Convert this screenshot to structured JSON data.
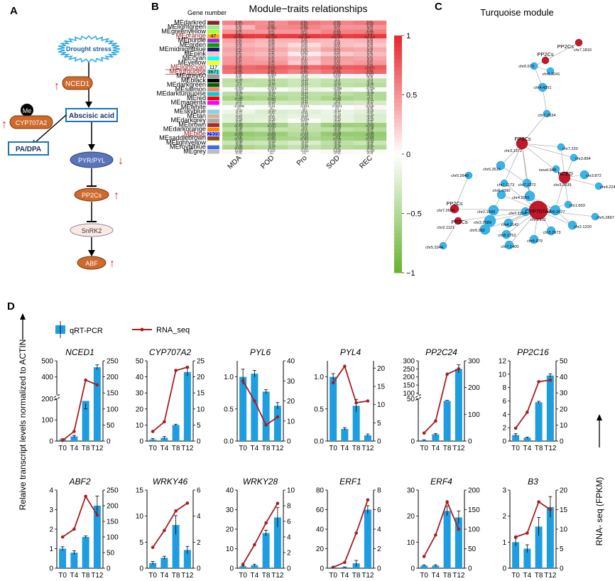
{
  "panels": {
    "A": {
      "label": "A",
      "nodes": {
        "drought": "Drought stress",
        "nced1": "NCED1",
        "aba": "Abscisic acid",
        "me": "Me",
        "cyp": "CYP707A2",
        "pa": "PA/DPA",
        "pyr": "PYR/PYL",
        "pp2c": "PP2Cs",
        "snrk": "SnRK2",
        "abf": "ABF"
      },
      "colors": {
        "orange": "#cd6a2c",
        "blue": "#1b75bb",
        "red": "#d9262b",
        "cyan": "#7fd1f0",
        "navy": "#5a74b8"
      }
    },
    "B": {
      "label": "B",
      "title": "Module−traits relationships",
      "gene_number_label": "Gene number",
      "modules": [
        "MEdarkred",
        "MElightgreen",
        "MEgreenyellow",
        "MEorange",
        "MEpurple",
        "MEgreen",
        "MEmidnightblue",
        "MEpink",
        "MEcyan",
        "MEyellow",
        "MElightcyan",
        "MEturquoise",
        "MEgrey60",
        "MEblack",
        "MEdarkgreen",
        "MEsalmon",
        "MEdarkturquoise",
        "MEred",
        "MEmagenta",
        "MEwhite",
        "MEskyblue",
        "MEtan",
        "MEdarkgrey",
        "MEbrown",
        "MEdarkorange",
        "MEblue",
        "MEsaddlebrown",
        "MElightyellow",
        "MEroyalblue",
        "MEgrey"
      ],
      "module_colors": [
        "#8b2323",
        "#90ee90",
        "#adff2f",
        "#ffa500",
        "#a020f0",
        "#00a000",
        "#191970",
        "#ffc0cb",
        "#00ffff",
        "#ffff00",
        "#e0ffff",
        "#40e0d0",
        "#999999",
        "#000000",
        "#006400",
        "#fa8072",
        "#00ced1",
        "#ff0000",
        "#ff00ff",
        "#ffffff",
        "#87ceeb",
        "#d2b48c",
        "#a9a9a9",
        "#a52a2a",
        "#ff8c00",
        "#0000ff",
        "#8b4513",
        "#ffffe0",
        "#4169e1",
        "#bebebe"
      ],
      "highlighted": {
        "MEorange": "47",
        "MElightcyan": "117",
        "MEturquoise": "3671",
        "MEblue": "2909"
      },
      "traits": [
        "MDA",
        "POD",
        "Pro",
        "SOD",
        "REC"
      ],
      "colorbar_ticks": [
        "1",
        "0.5",
        "0",
        "−0.5",
        "−1"
      ]
    },
    "C": {
      "label": "C",
      "title": "Turquoise module",
      "node_labels": [
        "PP2Cs",
        "chr7.1810",
        "PP2Cs",
        "chr6.673",
        "chr6.3041",
        "chr4.4251",
        "chr7.2634",
        "PP2Cs",
        "chr3.1372",
        "chr7.220",
        "chr3.894",
        "chr6.3515",
        "chr5.2840",
        "chr7.1173",
        "chr7.2272",
        "novel.948",
        "NCED",
        "chr3.3639",
        "chr3.872",
        "chr4.2242",
        "chr6.4390",
        "chr4.2991",
        "chr2.1609",
        "chr7.1104",
        "chr2.2589",
        "chr4.1142",
        "chr5.2077",
        "chr5.2897",
        "PP2Cs",
        "chr7.2604",
        "chr1.603",
        "CYP707A2",
        "chr3.932",
        "chr2.1220",
        "chr5.992",
        "chr5.1752",
        "chr2.2673",
        "PP2Cs",
        "chr2.1121",
        "chr7.1400",
        "chr5.979",
        "chr5.3344"
      ]
    },
    "D": {
      "label": "D"
    }
  },
  "legend": {
    "bar": "qRT-PCR",
    "line": "RNA_seq"
  },
  "y_left_label": "Relaive transcript levels normalized to ACTIN",
  "y_right_label": "RNA- seq (FPKM)",
  "colors": {
    "bar": "#1e9de0",
    "line": "#a51e22"
  },
  "chart_data": {
    "type": "heatmap",
    "title": "Module−traits relationships",
    "rows": [
      "MEdarkred",
      "MElightgreen",
      "MEgreenyellow",
      "MEorange",
      "MEpurple",
      "MEgreen",
      "MEmidnightblue",
      "MEpink",
      "MEcyan",
      "MEyellow",
      "MElightcyan",
      "MEturquoise",
      "MEgrey60",
      "MEblack",
      "MEdarkgreen",
      "MEsalmon",
      "MEdarkturquoise",
      "MEred",
      "MEmagenta",
      "MEwhite",
      "MEskyblue",
      "MEtan",
      "MEdarkgrey",
      "MEbrown",
      "MEdarkorange",
      "MEblue",
      "MEsaddlebrown",
      "MElightyellow",
      "MEroyalblue",
      "MEgrey"
    ],
    "columns": [
      "MDA",
      "POD",
      "Pro",
      "SOD",
      "REC"
    ],
    "values": [
      [
        0.56,
        0.51,
        0.61,
        0.56,
        0.61
      ],
      [
        0.33,
        0.54,
        0.55,
        0.48,
        0.49
      ],
      [
        0.49,
        0.47,
        0.47,
        0.56,
        0.58
      ],
      [
        0.91,
        0.89,
        0.9,
        0.88,
        0.9
      ],
      [
        0.41,
        0.33,
        0.33,
        0.3,
        0.33
      ],
      [
        0.34,
        0.29,
        0.16,
        0.29,
        0.26
      ],
      [
        0.42,
        0.39,
        0.28,
        0.42,
        0.39
      ],
      [
        0.37,
        0.32,
        0.097,
        0.24,
        0.31
      ],
      [
        0.46,
        0.41,
        0.3,
        0.44,
        0.41
      ],
      [
        0.47,
        0.46,
        0.23,
        0.42,
        0.47
      ],
      [
        0.69,
        0.73,
        0.69,
        0.74,
        0.75
      ],
      [
        0.65,
        0.66,
        0.56,
        0.65,
        0.68
      ],
      [
        0.05,
        -0.062,
        -0.11,
        0.042,
        0.057
      ],
      [
        -0.44,
        -0.41,
        -0.33,
        -0.4,
        -0.4
      ],
      [
        -0.4,
        -0.44,
        -0.34,
        -0.42,
        -0.46
      ],
      [
        -0.032,
        -0.044,
        -0.12,
        -0.086,
        -0.028
      ],
      [
        -0.45,
        -0.44,
        -0.42,
        -0.44,
        -0.49
      ],
      [
        -0.58,
        -0.53,
        -0.45,
        -0.55,
        -0.5
      ],
      [
        -0.3,
        -0.29,
        -0.31,
        -0.3,
        -0.27
      ],
      [
        -0.0095,
        -0.01,
        -0.014,
        0.0013,
        0.049
      ],
      [
        -0.12,
        -0.23,
        -0.2,
        -0.13,
        -0.18
      ],
      [
        -0.21,
        -0.2,
        -0.15,
        -0.15,
        -0.24
      ],
      [
        -0.18,
        -0.16,
        -0.044,
        -0.15,
        -0.23
      ],
      [
        -0.59,
        -0.59,
        -0.38,
        -0.63,
        -0.61
      ],
      [
        -0.42,
        -0.37,
        -0.4,
        -0.42,
        -0.48
      ],
      [
        -0.69,
        -0.65,
        -0.49,
        -0.68,
        -0.68
      ],
      [
        -0.6,
        -0.56,
        -0.54,
        -0.6,
        -0.64
      ],
      [
        -0.35,
        -0.33,
        -0.24,
        -0.41,
        -0.34
      ],
      [
        -0.55,
        -0.49,
        -0.39,
        -0.48,
        -0.51
      ],
      [
        0.039,
        0.013,
        -0.011,
        0.039,
        -0.035
      ]
    ],
    "pvalues": [
      "(0.07)",
      "(0.1)",
      "(0.04)",
      "(0.06)",
      "(0.04)",
      "(0.3)",
      "(0.09)",
      "(0.08)",
      "(0.1)",
      "(0.1)",
      "(0.1)",
      "(0.1)",
      "(0.1)",
      "(0.06)",
      "(0.05)",
      "(0.002)",
      "(2e−04)",
      "(2e−04)",
      "(2e−04)",
      "(2e−04)",
      "(0.2)",
      "(0.3)",
      "(0.3)",
      "(0.3)",
      "(0.3)",
      "(0.3)",
      "(0.4)",
      "(0.6)",
      "(0.4)",
      "(0.4)",
      "(0.2)",
      "(0.2)",
      "(0.4)",
      "(0.2)",
      "(0.2)",
      "(0.3)",
      "(0.3)",
      "(0.8)",
      "(0.5)",
      "(0.3)",
      "(0.1)",
      "(0.2)",
      "(0.4)",
      "(0.1)",
      "(0.2)",
      "(0.1)",
      "(0.1)",
      "(0.5)",
      "(0.2)",
      "(0.1)",
      "(0.02)",
      "(0.01)",
      "(0.02)",
      "(0.009)",
      "(0.007)",
      "(0.03)",
      "(0.02)",
      "(0.07)",
      "(0.03)",
      "(0.02)",
      "(0.9)",
      "(0.8)",
      "(0.8)",
      "(0.9)",
      "(0.9)",
      "(0.2)",
      "(0.2)",
      "(0.3)",
      "(0.2)",
      "(0.2)",
      "(0.2)",
      "(0.2)",
      "(0.3)",
      "(0.2)",
      "(0.1)",
      "(0.9)",
      "(0.9)",
      "(0.7)",
      "(0.8)",
      "(0.9)",
      "(0.1)",
      "(0.2)",
      "(0.2)",
      "(0.1)",
      "(0.1)",
      "(0.05)",
      "(0.08)",
      "(0.1)",
      "(0.06)",
      "(0.1)",
      "(0.3)",
      "(0.4)",
      "(0.3)",
      "(0.3)",
      "(0.4)",
      "(1)",
      "(1)",
      "(1)",
      "(1)",
      "(0.9)",
      "(0.7)",
      "(0.5)",
      "(0.5)",
      "(0.7)",
      "(0.6)",
      "(0.5)",
      "(0.5)",
      "(0.6)",
      "(0.6)",
      "(0.5)",
      "(0.6)",
      "(0.6)",
      "(0.9)",
      "(0.6)",
      "(0.5)",
      "(0.06)",
      "(0.04)",
      "(0.2)",
      "(0.03)",
      "(0.04)",
      "(0.2)",
      "(0.2)",
      "(0.2)",
      "(0.2)",
      "(0.1)",
      "(0.02)",
      "(0.03)",
      "(0.09)",
      "(0.02)",
      "(0.02)",
      "(0.05)",
      "(0.06)",
      "(0.06)",
      "(0.03)",
      "(0.02)",
      "(0.3)",
      "(0.3)",
      "(0.4)",
      "(0.2)",
      "(0.3)",
      "(0.06)",
      "(0.1)",
      "(0.2)",
      "(0.1)",
      "(0.1)",
      "(0.9)",
      "(1)",
      "(1)",
      "(0.9)",
      "(0.9)"
    ],
    "colorbar": {
      "min": -1,
      "max": 1,
      "low_color": "#66b32e",
      "mid_color": "#ffffff",
      "high_color": "#e8242a"
    },
    "subcharts": [
      {
        "gene": "NCED1",
        "type": "bar+line",
        "categories": [
          "T0",
          "T4",
          "T8",
          "T12"
        ],
        "bar_values": [
          8,
          22,
          190,
          460
        ],
        "bar_errors": [
          3,
          5,
          12,
          15
        ],
        "line_values": [
          2,
          30,
          190,
          175
        ],
        "y_left_ticks": [
          "0",
          "100",
          "200",
          "300",
          "400",
          "500"
        ],
        "y_right_ticks": [
          "0",
          "50",
          "100",
          "150",
          "200",
          "250"
        ],
        "y_right_max": 250,
        "axis_break": true,
        "break_low_max": 200,
        "break_high_min": 300,
        "break_high_max": 500
      },
      {
        "gene": "CYP707A2",
        "type": "bar+line",
        "categories": [
          "T0",
          "T4",
          "T8",
          "T12"
        ],
        "bar_values": [
          1,
          2,
          10,
          43
        ],
        "bar_errors": [
          0.5,
          0.8,
          0.5,
          2.5
        ],
        "line_values": [
          3,
          6,
          22,
          23
        ],
        "y_left_ticks": [
          "0",
          "10",
          "20",
          "30",
          "40",
          "50"
        ],
        "y_left_max": 50,
        "y_right_ticks": [
          "0",
          "5",
          "10",
          "15",
          "20",
          "25"
        ],
        "y_right_max": 25
      },
      {
        "gene": "PYL6",
        "type": "bar+line",
        "categories": [
          "T0",
          "T4",
          "T8",
          "T12"
        ],
        "bar_values": [
          1.0,
          1.05,
          0.77,
          0.55
        ],
        "bar_errors": [
          0.12,
          0.05,
          0.03,
          0.05
        ],
        "line_values": [
          30,
          20,
          8,
          12
        ],
        "y_left_ticks": [
          "0.0",
          "0.5",
          "1.0"
        ],
        "y_left_max": 1.25,
        "y_right_ticks": [
          "0",
          "10",
          "20",
          "30",
          "40"
        ],
        "y_right_max": 40
      },
      {
        "gene": "PYL4",
        "type": "bar+line",
        "categories": [
          "T0",
          "T4",
          "T8",
          "T12"
        ],
        "bar_values": [
          1.0,
          0.19,
          0.55,
          0.09
        ],
        "bar_errors": [
          0.05,
          0.02,
          0.1,
          0.02
        ],
        "line_values": [
          16,
          20.5,
          10.5,
          11
        ],
        "y_left_ticks": [
          "0.0",
          "0.5",
          "1.0"
        ],
        "y_left_max": 1.25,
        "y_right_ticks": [
          "0",
          "5",
          "10",
          "15",
          "20"
        ],
        "y_right_max": 22
      },
      {
        "gene": "PP2C24",
        "type": "bar+line",
        "categories": [
          "T0",
          "T4",
          "T8",
          "T12"
        ],
        "bar_values": [
          1,
          8,
          52,
          250
        ],
        "bar_errors": [
          0.5,
          1,
          4,
          25
        ],
        "line_values": [
          30,
          75,
          250,
          270
        ],
        "y_left_ticks": [
          "0",
          "50",
          "100",
          "150",
          "200",
          "250",
          "300"
        ],
        "y_right_ticks": [
          "0",
          "100",
          "200",
          "300"
        ],
        "y_right_max": 300,
        "axis_break": true,
        "break_low_max": 100,
        "break_high_min": 100,
        "break_high_max": 300
      },
      {
        "gene": "PP2C16",
        "type": "bar+line",
        "categories": [
          "T0",
          "T4",
          "T8",
          "T12"
        ],
        "bar_values": [
          0.9,
          0.5,
          5.8,
          9.8
        ],
        "bar_errors": [
          0.2,
          0.1,
          0.15,
          0.25
        ],
        "line_values": [
          8,
          18,
          37,
          38
        ],
        "y_left_ticks": [
          "0",
          "2",
          "4",
          "6",
          "8",
          "10",
          "12"
        ],
        "y_left_max": 12,
        "y_right_ticks": [
          "0",
          "10",
          "20",
          "30",
          "40",
          "50"
        ],
        "y_right_max": 50
      },
      {
        "gene": "ABF2",
        "type": "bar+line",
        "categories": [
          "T0",
          "T4",
          "T8",
          "T12"
        ],
        "bar_values": [
          1.0,
          0.8,
          1.6,
          3.2
        ],
        "bar_errors": [
          0.1,
          0.1,
          0.05,
          0.5
        ],
        "line_values": [
          100,
          125,
          230,
          170
        ],
        "y_left_ticks": [
          "0",
          "1",
          "2",
          "3",
          "4"
        ],
        "y_left_max": 4,
        "y_right_ticks": [
          "0",
          "50",
          "100",
          "150",
          "200",
          "250"
        ],
        "y_right_max": 250
      },
      {
        "gene": "WRKY46",
        "type": "bar+line",
        "categories": [
          "T0",
          "T4",
          "T8",
          "T12"
        ],
        "bar_values": [
          1.0,
          2.0,
          8.3,
          3.5
        ],
        "bar_errors": [
          0.3,
          0.3,
          1.8,
          0.7
        ],
        "line_values": [
          1.6,
          2.9,
          4.4,
          5.0
        ],
        "y_left_ticks": [
          "0",
          "5",
          "10",
          "15"
        ],
        "y_left_max": 15,
        "y_right_ticks": [
          "0",
          "2",
          "4",
          "6"
        ],
        "y_right_max": 6
      },
      {
        "gene": "WRKY28",
        "type": "bar+line",
        "categories": [
          "T0",
          "T4",
          "T8",
          "T12"
        ],
        "bar_values": [
          1.0,
          1.5,
          18,
          26
        ],
        "bar_errors": [
          0.3,
          0.5,
          1.5,
          5
        ],
        "line_values": [
          0.5,
          3.0,
          5.8,
          8.3
        ],
        "y_left_ticks": [
          "0",
          "10",
          "20",
          "30",
          "40"
        ],
        "y_left_max": 40,
        "y_right_ticks": [
          "0",
          "2",
          "4",
          "6",
          "8",
          "10"
        ],
        "y_right_max": 10
      },
      {
        "gene": "ERF1",
        "type": "bar+line",
        "categories": [
          "T0",
          "T4",
          "T8",
          "T12"
        ],
        "bar_values": [
          1,
          1,
          5,
          60
        ],
        "bar_errors": [
          0.3,
          0.3,
          3,
          4
        ],
        "line_values": [
          0.1,
          0.6,
          3.6,
          7.0
        ],
        "y_left_ticks": [
          "0",
          "20",
          "40",
          "60",
          "80"
        ],
        "y_left_max": 80,
        "y_right_ticks": [
          "0",
          "2",
          "4",
          "6",
          "8"
        ],
        "y_right_max": 8
      },
      {
        "gene": "ERF4",
        "type": "bar+line",
        "categories": [
          "T0",
          "T4",
          "T8",
          "T12"
        ],
        "bar_values": [
          1,
          1,
          22,
          19.5
        ],
        "bar_errors": [
          0.3,
          0.3,
          1.8,
          2.5
        ],
        "line_values": [
          30,
          85,
          170,
          100
        ],
        "y_left_ticks": [
          "0",
          "10",
          "20",
          "30"
        ],
        "y_left_max": 30,
        "y_right_ticks": [
          "0",
          "50",
          "100",
          "150",
          "200"
        ],
        "y_right_max": 200
      },
      {
        "gene": "B3",
        "type": "bar+line",
        "categories": [
          "T0",
          "T4",
          "T8",
          "T12"
        ],
        "bar_values": [
          1.0,
          0.75,
          1.6,
          2.35
        ],
        "bar_errors": [
          0.15,
          0.15,
          0.35,
          0.4
        ],
        "line_values": [
          8,
          9,
          17,
          15
        ],
        "y_left_ticks": [
          "0",
          "1",
          "2",
          "3"
        ],
        "y_left_max": 3,
        "y_right_ticks": [
          "0",
          "5",
          "10",
          "15",
          "20"
        ],
        "y_right_max": 20
      }
    ]
  }
}
